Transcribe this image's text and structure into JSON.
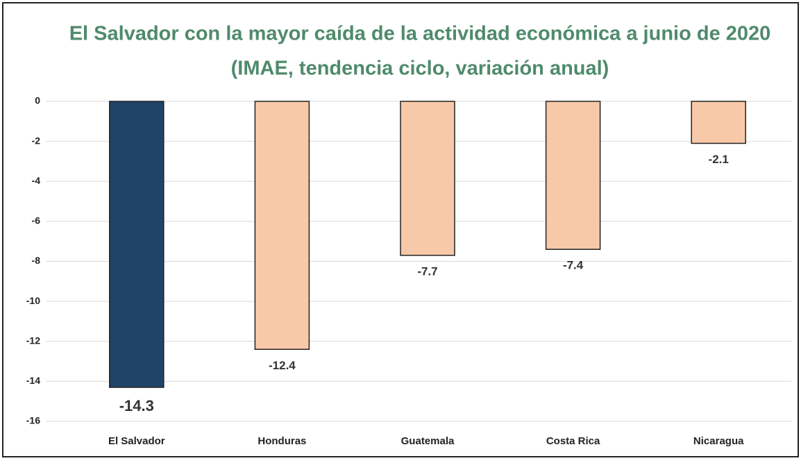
{
  "chart_data": {
    "type": "bar",
    "title": "El Salvador con la mayor caída de la actividad económica a junio de 2020",
    "subtitle": "(IMAE, tendencia ciclo, variación anual)",
    "categories": [
      "El Salvador",
      "Honduras",
      "Guatemala",
      "Costa Rica",
      "Nicaragua"
    ],
    "values": [
      -14.3,
      -12.4,
      -7.7,
      -7.4,
      -2.1
    ],
    "colors": [
      "#1f4468",
      "#f8c9a8",
      "#f8c9a8",
      "#f8c9a8",
      "#f8c9a8"
    ],
    "ylim": [
      -16,
      0
    ],
    "yticks": [
      0,
      -2,
      -4,
      -6,
      -8,
      -10,
      -12,
      -14,
      -16
    ],
    "grid": true
  }
}
